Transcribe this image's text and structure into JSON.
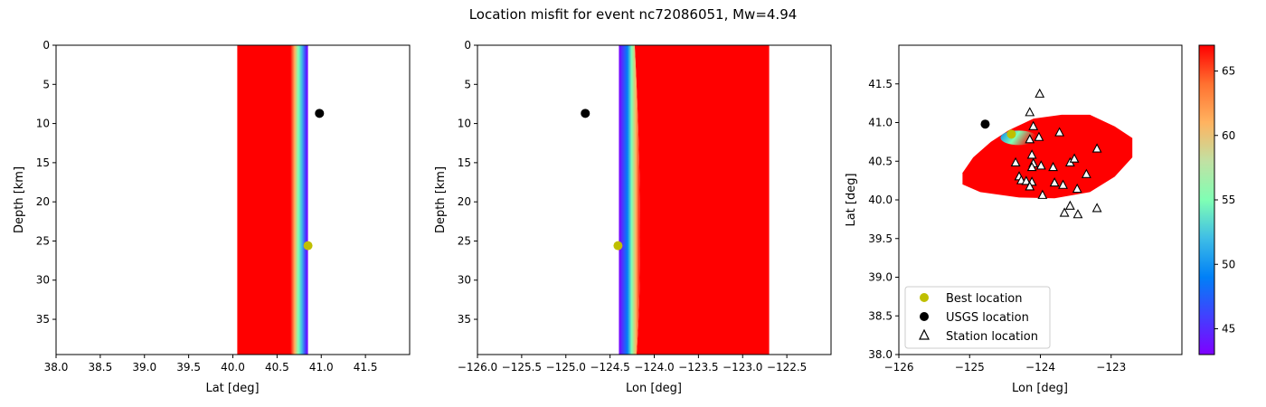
{
  "figure": {
    "title": "Location misfit for event nc72086051, Mw=4.94"
  },
  "chart_data": [
    {
      "type": "heatmap",
      "xlabel": "Lat [deg]",
      "ylabel": "Depth [km]",
      "xlim": [
        38.0,
        42.0
      ],
      "ylim": [
        39.5,
        0
      ],
      "xticks": [
        "38.0",
        "38.5",
        "39.0",
        "39.5",
        "40.0",
        "40.5",
        "41.0",
        "41.5"
      ],
      "yticks": [
        "0",
        "5",
        "10",
        "15",
        "20",
        "25",
        "30",
        "35"
      ],
      "misfit_field": {
        "x_min": 40.05,
        "x_max": 40.85,
        "gradient_start": 40.65,
        "gradient_end": 40.85
      },
      "points": [
        {
          "name": "USGS location",
          "x": 40.98,
          "y": 8.7,
          "color": "#000000"
        },
        {
          "name": "Best location",
          "x": 40.85,
          "y": 25.6,
          "color": "#bfbf00"
        }
      ]
    },
    {
      "type": "heatmap",
      "xlabel": "Lon [deg]",
      "ylabel": "Depth [km]",
      "xlim": [
        -126.0,
        -122.0
      ],
      "ylim": [
        39.5,
        0
      ],
      "xticks": [
        "−126.0",
        "−125.5",
        "−125.0",
        "−124.5",
        "−124.0",
        "−123.5",
        "−123.0",
        "−122.5"
      ],
      "yticks": [
        "0",
        "5",
        "10",
        "15",
        "20",
        "25",
        "30",
        "35"
      ],
      "misfit_field": {
        "x_min": -124.4,
        "x_max": -122.7,
        "gradient_start": -124.4,
        "gradient_end": -124.17
      },
      "points": [
        {
          "name": "USGS location",
          "x": -124.78,
          "y": 8.7,
          "color": "#000000"
        },
        {
          "name": "Best location",
          "x": -124.41,
          "y": 25.6,
          "color": "#bfbf00"
        }
      ]
    },
    {
      "type": "scatter",
      "xlabel": "Lon [deg]",
      "ylabel": "Lat [deg]",
      "xlim": [
        -126.0,
        -122.0
      ],
      "ylim": [
        38.0,
        42.0
      ],
      "xticks": [
        "−126",
        "−125",
        "−124",
        "−123"
      ],
      "yticks": [
        "38.0",
        "38.5",
        "39.0",
        "39.5",
        "40.0",
        "40.5",
        "41.0",
        "41.5"
      ],
      "legend_position": "lower-left",
      "legend": [
        "Best location",
        "USGS location",
        "Station location"
      ],
      "misfit_region": [
        [
          -125.1,
          40.2
        ],
        [
          -125.1,
          40.35
        ],
        [
          -124.95,
          40.55
        ],
        [
          -124.7,
          40.75
        ],
        [
          -124.45,
          40.9
        ],
        [
          -124.1,
          41.05
        ],
        [
          -123.7,
          41.1
        ],
        [
          -123.3,
          41.1
        ],
        [
          -122.95,
          40.95
        ],
        [
          -122.7,
          40.8
        ],
        [
          -122.7,
          40.55
        ],
        [
          -122.95,
          40.3
        ],
        [
          -123.3,
          40.1
        ],
        [
          -123.8,
          40.02
        ],
        [
          -124.3,
          40.03
        ],
        [
          -124.85,
          40.1
        ]
      ],
      "best_location": {
        "x": -124.41,
        "y": 40.85,
        "color": "#bfbf00"
      },
      "usgs_location": {
        "x": -124.78,
        "y": 40.98,
        "color": "#000000"
      },
      "stations": [
        [
          -124.01,
          41.37
        ],
        [
          -124.15,
          41.13
        ],
        [
          -124.1,
          40.95
        ],
        [
          -124.02,
          40.81
        ],
        [
          -124.15,
          40.78
        ],
        [
          -123.73,
          40.87
        ],
        [
          -123.2,
          40.66
        ],
        [
          -124.12,
          40.58
        ],
        [
          -124.35,
          40.48
        ],
        [
          -124.1,
          40.47
        ],
        [
          -123.58,
          40.48
        ],
        [
          -124.12,
          40.42
        ],
        [
          -123.99,
          40.44
        ],
        [
          -123.82,
          40.42
        ],
        [
          -123.52,
          40.53
        ],
        [
          -123.35,
          40.33
        ],
        [
          -124.3,
          40.3
        ],
        [
          -124.27,
          40.25
        ],
        [
          -124.2,
          40.24
        ],
        [
          -124.12,
          40.23
        ],
        [
          -123.8,
          40.22
        ],
        [
          -123.68,
          40.19
        ],
        [
          -124.15,
          40.17
        ],
        [
          -123.48,
          40.14
        ],
        [
          -123.97,
          40.06
        ],
        [
          -123.66,
          39.83
        ],
        [
          -123.58,
          39.92
        ],
        [
          -123.47,
          39.81
        ],
        [
          -123.2,
          39.89
        ]
      ],
      "colorbar": {
        "min": 43,
        "max": 67,
        "ticks": [
          "45",
          "50",
          "55",
          "60",
          "65"
        ],
        "tick_values": [
          45,
          50,
          55,
          60,
          65
        ]
      }
    }
  ]
}
